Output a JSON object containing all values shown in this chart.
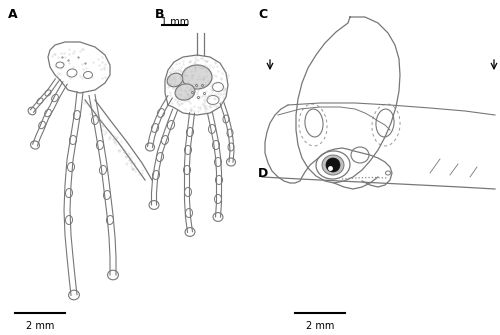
{
  "figure_width": 5.0,
  "figure_height": 3.35,
  "dpi": 100,
  "bg_color": "#ffffff",
  "lc": "#777777",
  "lc_dark": "#444444",
  "fill_gray": "#d8d8d8",
  "label_fontsize": 9,
  "scale_fontsize": 7,
  "labels": [
    "A",
    "B",
    "C",
    "D"
  ],
  "scale_A": "2 mm",
  "scale_B": "1 mm",
  "scale_CD": "2 mm"
}
